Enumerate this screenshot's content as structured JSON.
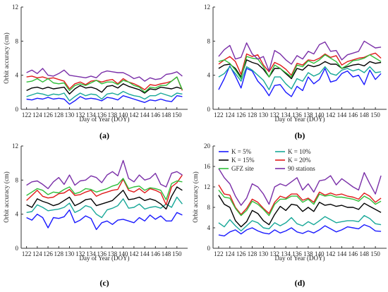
{
  "chart_data": [
    {
      "type": "line",
      "panel_label": "(a)",
      "xlabel": "Day of Year (DOY)",
      "ylabel": "Orbit accuracy (cm)",
      "xlim": [
        121,
        152
      ],
      "ylim": [
        0,
        12
      ],
      "yticks": [
        0,
        4,
        8,
        12
      ],
      "xticks": [
        122,
        124,
        126,
        128,
        130,
        132,
        134,
        136,
        138,
        140,
        142,
        144,
        146,
        148,
        150
      ],
      "x": [
        122,
        123,
        124,
        125,
        126,
        127,
        128,
        129,
        130,
        131,
        132,
        133,
        134,
        135,
        136,
        137,
        138,
        139,
        140,
        141,
        142,
        143,
        144,
        145,
        146,
        147,
        148,
        149,
        150,
        151
      ],
      "series": [
        {
          "name": "K = 5%",
          "color": "#1a1aff",
          "values": [
            1.2,
            1.1,
            1.3,
            1.2,
            1.4,
            1.2,
            1.3,
            1.2,
            0.6,
            1.0,
            1.5,
            1.2,
            1.3,
            1.2,
            1.0,
            1.4,
            1.3,
            1.1,
            1.6,
            1.4,
            1.2,
            1.0,
            0.8,
            1.1,
            1.0,
            1.2,
            1.0,
            0.9,
            1.6,
            1.5
          ]
        },
        {
          "name": "K = 10%",
          "color": "#18a898",
          "values": [
            1.5,
            1.7,
            1.9,
            1.8,
            1.6,
            1.8,
            1.7,
            1.9,
            1.0,
            1.5,
            1.9,
            1.6,
            1.8,
            1.7,
            1.2,
            1.8,
            1.9,
            1.7,
            2.1,
            1.8,
            1.6,
            1.5,
            1.2,
            1.6,
            1.6,
            1.9,
            1.7,
            1.5,
            1.9,
            1.8
          ]
        },
        {
          "name": "K = 15%",
          "color": "#000000",
          "values": [
            2.2,
            2.5,
            2.6,
            2.4,
            2.6,
            2.4,
            2.5,
            2.6,
            1.8,
            2.4,
            2.8,
            2.5,
            2.6,
            2.4,
            2.0,
            2.7,
            2.8,
            2.5,
            3.0,
            2.7,
            2.5,
            2.3,
            1.9,
            2.4,
            2.3,
            2.6,
            2.5,
            2.4,
            2.6,
            2.4
          ]
        },
        {
          "name": "K = 20%",
          "color": "#e01a1a",
          "values": [
            3.8,
            3.9,
            3.7,
            3.8,
            3.6,
            3.7,
            3.5,
            3.3,
            2.4,
            3.0,
            3.2,
            2.9,
            3.3,
            3.4,
            3.2,
            3.4,
            3.5,
            3.0,
            3.6,
            3.2,
            3.0,
            2.7,
            2.3,
            2.9,
            2.8,
            3.0,
            3.1,
            3.3,
            3.8,
            2.2
          ]
        },
        {
          "name": "GFZ site",
          "color": "#2fbf3a",
          "values": [
            3.2,
            3.3,
            3.6,
            3.2,
            3.6,
            3.1,
            3.0,
            3.1,
            2.2,
            2.8,
            3.0,
            2.8,
            3.1,
            3.4,
            3.0,
            3.2,
            3.2,
            2.9,
            3.4,
            3.2,
            2.8,
            2.6,
            2.0,
            2.6,
            2.5,
            2.8,
            2.8,
            3.3,
            3.8,
            2.3
          ]
        },
        {
          "name": "90 stations",
          "color": "#7a2fa8",
          "values": [
            4.3,
            4.6,
            4.2,
            4.8,
            4.0,
            3.9,
            4.2,
            4.6,
            4.0,
            3.9,
            3.8,
            3.7,
            3.9,
            3.7,
            4.3,
            4.5,
            4.4,
            4.3,
            4.3,
            4.0,
            3.6,
            3.8,
            3.3,
            3.7,
            3.5,
            3.6,
            4.1,
            4.2,
            4.4,
            3.9
          ]
        }
      ]
    },
    {
      "type": "line",
      "panel_label": "(b)",
      "xlabel": "Day of Year (DOY)",
      "ylabel": "",
      "xlim": [
        121,
        152
      ],
      "ylim": [
        0,
        12
      ],
      "yticks": [
        0,
        4,
        8,
        12
      ],
      "xticks": [
        122,
        124,
        126,
        128,
        130,
        132,
        134,
        136,
        138,
        140,
        142,
        144,
        146,
        148,
        150
      ],
      "x": [
        122,
        123,
        124,
        125,
        126,
        127,
        128,
        129,
        130,
        131,
        132,
        133,
        134,
        135,
        136,
        137,
        138,
        139,
        140,
        141,
        142,
        143,
        144,
        145,
        146,
        147,
        148,
        149,
        150,
        151
      ],
      "series": [
        {
          "name": "K = 5%",
          "color": "#1a1aff",
          "values": [
            2.3,
            3.6,
            5.1,
            3.9,
            2.5,
            4.8,
            4.5,
            3.3,
            2.6,
            1.6,
            2.8,
            2.9,
            2.0,
            1.5,
            2.7,
            2.2,
            3.8,
            3.0,
            3.5,
            4.8,
            3.2,
            3.4,
            4.2,
            4.5,
            3.8,
            4.0,
            2.9,
            4.6,
            3.5,
            4.2
          ]
        },
        {
          "name": "K = 10%",
          "color": "#18a898",
          "values": [
            3.8,
            4.2,
            5.0,
            4.2,
            3.3,
            5.0,
            4.6,
            4.0,
            3.4,
            2.3,
            3.8,
            3.8,
            3.0,
            2.4,
            3.6,
            3.3,
            4.3,
            3.9,
            4.2,
            5.0,
            4.2,
            4.0,
            4.6,
            4.8,
            4.5,
            4.7,
            4.3,
            5.0,
            4.3,
            4.4
          ]
        },
        {
          "name": "K = 15%",
          "color": "#000000",
          "values": [
            4.8,
            5.2,
            5.3,
            4.8,
            3.8,
            5.8,
            5.5,
            5.3,
            4.7,
            3.8,
            4.8,
            4.8,
            4.2,
            3.6,
            4.8,
            4.6,
            5.2,
            5.0,
            5.2,
            5.6,
            5.3,
            5.3,
            4.8,
            5.0,
            5.2,
            5.3,
            5.1,
            5.6,
            5.4,
            5.5
          ]
        },
        {
          "name": "K = 20%",
          "color": "#e01a1a",
          "values": [
            5.3,
            5.8,
            6.2,
            5.6,
            4.1,
            6.5,
            6.2,
            6.4,
            5.2,
            4.4,
            5.5,
            5.2,
            4.7,
            4.0,
            5.4,
            5.2,
            5.8,
            5.7,
            6.0,
            6.5,
            6.1,
            6.3,
            5.2,
            5.6,
            5.8,
            6.0,
            6.1,
            6.4,
            6.6,
            6.0
          ]
        },
        {
          "name": "GFZ site",
          "color": "#2fbf3a",
          "values": [
            5.6,
            5.8,
            5.4,
            4.6,
            3.6,
            6.2,
            6.0,
            5.9,
            5.0,
            3.8,
            5.2,
            4.8,
            4.3,
            3.8,
            5.2,
            5.0,
            5.7,
            5.4,
            5.8,
            6.4,
            6.0,
            5.6,
            4.8,
            5.2,
            5.7,
            5.8,
            6.0,
            6.4,
            6.0,
            5.6
          ]
        },
        {
          "name": "90 stations",
          "color": "#7a2fa8",
          "values": [
            6.2,
            7.0,
            7.5,
            5.9,
            6.1,
            7.8,
            6.5,
            5.9,
            6.2,
            4.5,
            6.9,
            6.5,
            5.8,
            5.3,
            6.3,
            5.9,
            6.8,
            6.5,
            7.6,
            7.9,
            6.8,
            6.9,
            5.8,
            6.4,
            6.6,
            6.8,
            8.0,
            7.6,
            7.2,
            7.3
          ]
        }
      ]
    },
    {
      "type": "line",
      "panel_label": "(c)",
      "xlabel": "Day of Year (DOY)",
      "ylabel": "Orbit accuracy (cm)",
      "xlim": [
        121,
        152
      ],
      "ylim": [
        0,
        12
      ],
      "yticks": [
        0,
        4,
        8,
        12
      ],
      "xticks": [
        122,
        124,
        126,
        128,
        130,
        132,
        134,
        136,
        138,
        140,
        142,
        144,
        146,
        148,
        150
      ],
      "x": [
        122,
        123,
        124,
        125,
        126,
        127,
        128,
        129,
        130,
        131,
        132,
        133,
        134,
        135,
        136,
        137,
        138,
        139,
        140,
        141,
        142,
        143,
        144,
        145,
        146,
        147,
        148,
        149,
        150,
        151
      ],
      "series": [
        {
          "name": "K = 5%",
          "color": "#1a1aff",
          "values": [
            3.6,
            3.3,
            4.0,
            3.6,
            2.4,
            3.6,
            3.5,
            3.7,
            4.5,
            3.0,
            3.3,
            3.8,
            3.5,
            2.2,
            3.0,
            3.2,
            2.8,
            3.3,
            3.4,
            3.2,
            3.0,
            3.6,
            3.2,
            3.9,
            3.4,
            3.8,
            3.2,
            3.2,
            4.2,
            3.9
          ]
        },
        {
          "name": "K = 10%",
          "color": "#18a898",
          "values": [
            4.2,
            4.3,
            5.1,
            4.8,
            4.4,
            4.5,
            4.6,
            4.8,
            5.3,
            4.2,
            4.5,
            5.0,
            4.8,
            4.0,
            3.6,
            4.5,
            4.7,
            5.0,
            5.8,
            4.7,
            4.8,
            5.2,
            4.6,
            4.8,
            4.9,
            4.7,
            5.2,
            4.8,
            6.0,
            5.2
          ]
        },
        {
          "name": "K = 15%",
          "color": "#000000",
          "values": [
            5.1,
            4.8,
            5.8,
            5.5,
            5.3,
            5.0,
            5.2,
            5.6,
            6.0,
            5.0,
            5.3,
            5.7,
            5.8,
            5.0,
            5.2,
            5.4,
            5.6,
            6.2,
            6.8,
            5.7,
            5.8,
            6.0,
            5.6,
            5.8,
            5.6,
            5.2,
            4.6,
            6.1,
            7.2,
            6.8
          ]
        },
        {
          "name": "K = 20%",
          "color": "#e01a1a",
          "values": [
            5.6,
            6.2,
            6.8,
            6.1,
            5.9,
            6.0,
            6.4,
            6.5,
            6.9,
            6.2,
            6.3,
            6.6,
            6.8,
            6.1,
            6.4,
            6.6,
            6.8,
            6.9,
            8.1,
            6.8,
            6.6,
            7.0,
            6.5,
            7.0,
            6.8,
            6.5,
            5.1,
            7.2,
            7.7,
            8.6
          ]
        },
        {
          "name": "GFZ site",
          "color": "#2fbf3a",
          "values": [
            6.2,
            6.6,
            7.0,
            6.8,
            6.3,
            6.6,
            6.5,
            6.9,
            7.2,
            6.4,
            6.6,
            7.0,
            6.9,
            6.6,
            6.8,
            7.0,
            7.3,
            7.5,
            8.2,
            7.0,
            7.2,
            7.3,
            6.8,
            7.1,
            7.0,
            6.8,
            5.7,
            7.6,
            7.9,
            7.8
          ]
        },
        {
          "name": "90 stations",
          "color": "#7a2fa8",
          "values": [
            7.4,
            7.8,
            7.9,
            7.5,
            7.0,
            7.8,
            8.3,
            7.5,
            8.6,
            7.4,
            7.9,
            8.0,
            8.5,
            8.3,
            7.7,
            8.6,
            9.0,
            8.5,
            10.3,
            8.2,
            7.8,
            8.6,
            8.0,
            8.2,
            8.8,
            7.5,
            7.2,
            8.8,
            9.0,
            8.6
          ]
        }
      ]
    },
    {
      "type": "line",
      "panel_label": "(d)",
      "xlabel": "Day of Year (DOY)",
      "ylabel": "Orbit accuracy (cm)",
      "xlim": [
        121,
        152
      ],
      "ylim": [
        0,
        20
      ],
      "yticks": [
        0,
        4,
        8,
        12,
        16,
        20
      ],
      "xticks": [
        122,
        124,
        126,
        128,
        130,
        132,
        134,
        136,
        138,
        140,
        142,
        144,
        146,
        148,
        150
      ],
      "x": [
        122,
        123,
        124,
        125,
        126,
        127,
        128,
        129,
        130,
        131,
        132,
        133,
        134,
        135,
        136,
        137,
        138,
        139,
        140,
        141,
        142,
        143,
        144,
        145,
        146,
        147,
        148,
        149,
        150,
        151
      ],
      "legend": [
        "K = 5%",
        "K = 10%",
        "K = 15%",
        "K = 20%",
        "GFZ site",
        "90 stations"
      ],
      "legend_position": "top-left",
      "series": [
        {
          "name": "K = 5%",
          "color": "#1a1aff",
          "values": [
            2.6,
            2.4,
            3.2,
            3.6,
            2.8,
            3.6,
            4.0,
            3.4,
            3.0,
            2.8,
            3.6,
            3.0,
            3.4,
            4.0,
            3.2,
            2.9,
            3.4,
            3.0,
            3.6,
            4.4,
            3.8,
            3.2,
            3.6,
            4.2,
            4.0,
            3.8,
            4.6,
            4.2,
            3.4,
            3.3
          ]
        },
        {
          "name": "K = 10%",
          "color": "#18a898",
          "values": [
            5.0,
            4.2,
            5.6,
            4.4,
            3.4,
            4.4,
            5.4,
            5.0,
            4.0,
            3.8,
            5.0,
            4.4,
            5.0,
            6.0,
            4.8,
            4.4,
            5.2,
            4.6,
            5.4,
            6.2,
            5.6,
            5.0,
            5.2,
            5.4,
            5.4,
            5.2,
            6.4,
            5.8,
            4.8,
            4.6
          ]
        },
        {
          "name": "K = 15%",
          "color": "#000000",
          "values": [
            10.4,
            8.6,
            8.0,
            5.4,
            4.2,
            5.2,
            7.4,
            6.8,
            5.4,
            4.6,
            6.6,
            8.2,
            7.4,
            8.6,
            8.4,
            7.2,
            8.0,
            7.2,
            9.0,
            8.4,
            8.6,
            8.2,
            8.4,
            8.0,
            8.0,
            7.6,
            8.8,
            8.2,
            7.6,
            7.0
          ]
        },
        {
          "name": "K = 20%",
          "color": "#e01a1a",
          "values": [
            12.4,
            10.6,
            10.4,
            8.0,
            6.6,
            7.8,
            9.6,
            9.0,
            7.8,
            6.8,
            9.0,
            10.2,
            9.8,
            10.6,
            10.6,
            9.4,
            9.8,
            9.0,
            11.0,
            10.4,
            10.8,
            10.4,
            10.6,
            10.2,
            10.0,
            9.6,
            10.8,
            10.2,
            9.0,
            9.8
          ]
        },
        {
          "name": "GFZ site",
          "color": "#2fbf3a",
          "values": [
            11.4,
            10.0,
            9.8,
            7.8,
            6.4,
            7.4,
            9.2,
            8.6,
            7.6,
            6.4,
            8.6,
            9.6,
            9.6,
            10.2,
            10.2,
            9.0,
            9.6,
            8.6,
            10.6,
            10.2,
            10.4,
            10.0,
            10.0,
            9.8,
            9.6,
            9.2,
            10.2,
            9.6,
            8.6,
            9.2
          ]
        },
        {
          "name": "90 stations",
          "color": "#7a2fa8",
          "values": [
            15.6,
            13.8,
            12.6,
            10.2,
            8.4,
            9.8,
            12.6,
            12.0,
            10.6,
            8.6,
            12.0,
            12.6,
            12.2,
            13.0,
            13.8,
            11.4,
            12.6,
            11.0,
            13.2,
            13.4,
            14.2,
            12.4,
            13.6,
            12.8,
            12.0,
            11.4,
            14.8,
            12.6,
            10.6,
            14.2
          ]
        }
      ]
    }
  ]
}
